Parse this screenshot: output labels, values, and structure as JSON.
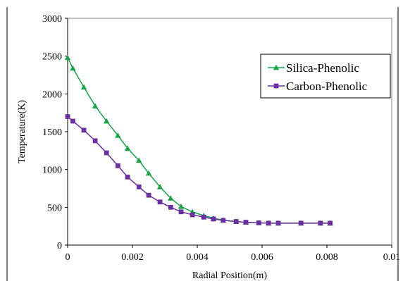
{
  "chart_data": {
    "type": "line",
    "title": "",
    "xlabel": "Radial Position(m)",
    "ylabel": "Temperature(K)",
    "xlim": [
      0,
      0.01
    ],
    "ylim": [
      0,
      3000
    ],
    "x_ticks": [
      0,
      0.002,
      0.004,
      0.006,
      0.008,
      0.01
    ],
    "x_tick_labels": [
      "0",
      "0.002",
      "0.004",
      "0.006",
      "0.008",
      "0.01"
    ],
    "y_ticks": [
      0,
      500,
      1000,
      1500,
      2000,
      2500,
      3000
    ],
    "y_tick_labels": [
      "0",
      "500",
      "1000",
      "1500",
      "2000",
      "2500",
      "3000"
    ],
    "grid": false,
    "legend_position": "top-right",
    "series": [
      {
        "name": "Silica-Phenolic",
        "color": "#1aa34a",
        "marker": "triangle",
        "x": [
          0,
          0.00016,
          0.0005,
          0.00085,
          0.0012,
          0.00155,
          0.00185,
          0.0022,
          0.0025,
          0.00285,
          0.00318,
          0.0035,
          0.00385,
          0.0042,
          0.0045,
          0.0048,
          0.0052,
          0.0055,
          0.0059,
          0.0062,
          0.0065,
          0.0072,
          0.0078,
          0.0081
        ],
        "y": [
          2480,
          2340,
          2090,
          1840,
          1640,
          1450,
          1280,
          1120,
          950,
          770,
          620,
          510,
          440,
          390,
          355,
          330,
          312,
          302,
          294,
          290,
          290,
          290,
          290,
          290
        ]
      },
      {
        "name": "Carbon-Phenolic",
        "color": "#6a2fa0",
        "marker": "square",
        "x": [
          0,
          0.00016,
          0.0005,
          0.00085,
          0.0012,
          0.00155,
          0.00185,
          0.0022,
          0.0025,
          0.00285,
          0.00318,
          0.0035,
          0.00385,
          0.0042,
          0.0045,
          0.0048,
          0.0052,
          0.0055,
          0.0059,
          0.0062,
          0.0065,
          0.0072,
          0.0078,
          0.0081
        ],
        "y": [
          1700,
          1640,
          1520,
          1380,
          1220,
          1050,
          900,
          770,
          660,
          570,
          500,
          440,
          400,
          370,
          345,
          327,
          312,
          302,
          294,
          290,
          290,
          290,
          290,
          290
        ]
      }
    ]
  }
}
